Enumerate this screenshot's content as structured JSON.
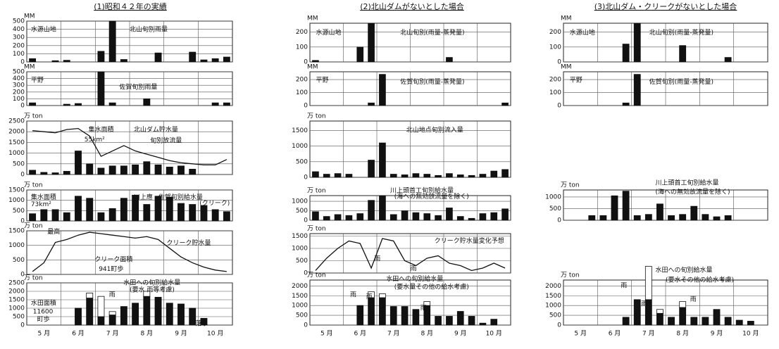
{
  "titles": [
    "(1)昭和４２年の実績",
    "(2)北山ダムがないとした場合",
    "(3)北山ダム・クリークがないとした場合"
  ],
  "chart_data": [
    {
      "type": "bar",
      "ylabel": "MM",
      "ylim": [
        0,
        500
      ],
      "yticks": [
        0,
        100,
        200,
        300,
        400,
        500
      ],
      "series": [
        {
          "type": "bar",
          "color": "#111111",
          "values": [
            40,
            0,
            15,
            20,
            0,
            0,
            130,
            500,
            30,
            0,
            0,
            110,
            0,
            0,
            120,
            25,
            40,
            60
          ]
        }
      ],
      "annotations": [
        "水源山地",
        "北山旬別雨量"
      ]
    },
    {
      "type": "bar",
      "ylabel": "MM",
      "ylim": [
        0,
        500
      ],
      "yticks": [
        0,
        100,
        200,
        300,
        400,
        500
      ],
      "series": [
        {
          "type": "bar",
          "color": "#111111",
          "values": [
            40,
            0,
            0,
            20,
            30,
            0,
            500,
            40,
            0,
            0,
            100,
            0,
            0,
            0,
            0,
            0,
            40,
            40
          ]
        }
      ],
      "annotations": [
        "平野",
        "佐賀旬別雨量"
      ]
    },
    {
      "type": "combo",
      "ylabel": "万 ton",
      "ylim": [
        0,
        2500
      ],
      "yticks": [
        0,
        500,
        1000,
        1500,
        2000,
        2500
      ],
      "series": [
        {
          "type": "bar",
          "color": "#111111",
          "values": [
            200,
            100,
            80,
            150,
            1100,
            500,
            300,
            400,
            400,
            450,
            600,
            450,
            350,
            400,
            250,
            0,
            0,
            0
          ]
        },
        {
          "type": "line",
          "color": "#111111",
          "values": [
            2050,
            2000,
            1950,
            2100,
            2150,
            1800,
            850,
            1100,
            1350,
            1100,
            950,
            800,
            650,
            550,
            500,
            450,
            450,
            700
          ]
        }
      ],
      "annotations": [
        "集水面積",
        "55km²",
        "北山ダム貯水量",
        "旬別放流量"
      ]
    },
    {
      "type": "bar",
      "ylabel": "万 ton",
      "ylim": [
        0,
        1500
      ],
      "yticks": [
        0,
        500,
        1000,
        1500
      ],
      "series": [
        {
          "type": "bar",
          "color": "#111111",
          "values": [
            350,
            550,
            550,
            400,
            1200,
            1100,
            400,
            600,
            1100,
            1250,
            800,
            1200,
            1150,
            850,
            800,
            750,
            550,
            450
          ]
        }
      ],
      "annotations": [
        "集水面積",
        "73km²",
        "川上應",
        "佐賀旬別給水量",
        "(クリーク)"
      ]
    },
    {
      "type": "line",
      "ylabel": "万 ton",
      "ylim": [
        0,
        1500
      ],
      "yticks": [
        0,
        500,
        1000,
        1500
      ],
      "series": [
        {
          "type": "line",
          "color": "#111111",
          "values": [
            100,
            400,
            1100,
            1200,
            1350,
            1450,
            1400,
            1350,
            1300,
            1250,
            1300,
            1200,
            900,
            600,
            400,
            250,
            150,
            100
          ]
        }
      ],
      "annotations": [
        "最高",
        "クリーク貯水量",
        "クリーク面積",
        "941町歩"
      ]
    },
    {
      "type": "bar",
      "ylabel": "万 ton",
      "ylim": [
        0,
        2500
      ],
      "yticks": [
        0,
        500,
        1000,
        1500,
        2000,
        2500
      ],
      "series": [
        {
          "type": "bar",
          "color": "#111111",
          "values": [
            0,
            0,
            0,
            0,
            1000,
            1600,
            500,
            600,
            1100,
            1300,
            1700,
            1650,
            1300,
            1250,
            1000,
            400,
            0,
            0
          ]
        },
        {
          "type": "bar",
          "color": "#ffffff",
          "values": [
            0,
            0,
            0,
            0,
            0,
            300,
            1200,
            200,
            0,
            0,
            300,
            0,
            0,
            0,
            0,
            0,
            0,
            0
          ]
        }
      ],
      "annotations": [
        "水田への旬別給水量",
        "(要水 雨等考慮)",
        "水田面積",
        "11600",
        "町歩",
        "雨",
        "落水"
      ],
      "months": [
        "5 月",
        "6 月",
        "7 月",
        "8 月",
        "9 月",
        "10 月"
      ]
    },
    {
      "type": "bar",
      "ylabel": "MM",
      "ylim": [
        0,
        260
      ],
      "yticks": [
        0,
        100,
        200
      ],
      "series": [
        {
          "type": "bar",
          "color": "#111111",
          "values": [
            10,
            0,
            0,
            0,
            100,
            260,
            0,
            0,
            0,
            0,
            0,
            0,
            30,
            0,
            0,
            0,
            0,
            0
          ]
        }
      ],
      "annotations": [
        "水源山地",
        "北山旬別(雨量-蒸発量)"
      ]
    },
    {
      "type": "bar",
      "ylabel": "MM",
      "ylim": [
        0,
        260
      ],
      "yticks": [
        0,
        100,
        200
      ],
      "series": [
        {
          "type": "bar",
          "color": "#111111",
          "values": [
            0,
            0,
            0,
            0,
            0,
            20,
            240,
            0,
            0,
            0,
            0,
            0,
            0,
            0,
            0,
            0,
            0,
            20
          ]
        }
      ],
      "annotations": [
        "平野",
        "佐賀旬別(雨量-蒸発量)"
      ]
    },
    {
      "type": "bar",
      "ylabel": "万 ton",
      "ylim": [
        0,
        1800
      ],
      "yticks": [
        0,
        500,
        1000,
        1500
      ],
      "series": [
        {
          "type": "bar",
          "color": "#111111",
          "values": [
            180,
            100,
            120,
            100,
            0,
            550,
            1100,
            100,
            80,
            120,
            100,
            60,
            120,
            80,
            60,
            100,
            200,
            250
          ]
        }
      ],
      "annotations": [
        "北山地点旬別流入量"
      ]
    },
    {
      "type": "bar",
      "ylabel": "万 ton",
      "ylim": [
        0,
        1300
      ],
      "yticks": [
        0,
        500,
        1000
      ],
      "series": [
        {
          "type": "bar",
          "color": "#111111",
          "values": [
            450,
            200,
            300,
            250,
            350,
            1050,
            1300,
            300,
            500,
            400,
            350,
            250,
            650,
            200,
            100,
            350,
            400,
            600
          ]
        }
      ],
      "annotations": [
        "川上頭首工旬別給水量",
        "(海への無効放流量を除く)"
      ]
    },
    {
      "type": "line",
      "ylabel": "万 ton",
      "ylim": [
        0,
        1600
      ],
      "yticks": [
        0,
        500,
        1000,
        1500
      ],
      "series": [
        {
          "type": "line",
          "color": "#111111",
          "values": [
            100,
            600,
            1000,
            1300,
            1200,
            200,
            1400,
            1300,
            500,
            300,
            600,
            700,
            400,
            300,
            100,
            200,
            400,
            200
          ]
        }
      ],
      "annotations": [
        "クリーク貯水量変化予想",
        "雨",
        "雨"
      ]
    },
    {
      "type": "bar",
      "ylabel": "万 ton",
      "ylim": [
        0,
        2300
      ],
      "yticks": [
        0,
        500,
        1000,
        1500,
        2000
      ],
      "series": [
        {
          "type": "bar",
          "color": "#111111",
          "values": [
            0,
            0,
            0,
            0,
            1000,
            1400,
            1400,
            950,
            950,
            800,
            1000,
            450,
            450,
            700,
            450,
            100,
            300,
            0
          ]
        },
        {
          "type": "bar",
          "color": "#ffffff",
          "values": [
            0,
            0,
            0,
            0,
            0,
            300,
            200,
            0,
            0,
            0,
            200,
            0,
            0,
            0,
            0,
            0,
            0,
            0
          ]
        }
      ],
      "annotations": [
        "水田への旬別給水量",
        "(要水量その他の給水考慮)",
        "雨",
        "雨",
        "雨"
      ],
      "months": [
        "5 月",
        "6 月",
        "7 月",
        "8 月",
        "9 月",
        "10 月"
      ]
    },
    {
      "type": "bar",
      "ylabel": "MM",
      "ylim": [
        0,
        260
      ],
      "yticks": [
        0,
        100,
        200
      ],
      "series": [
        {
          "type": "bar",
          "color": "#111111",
          "values": [
            0,
            0,
            0,
            0,
            0,
            120,
            260,
            0,
            0,
            0,
            110,
            0,
            0,
            0,
            30,
            0,
            0,
            0
          ]
        }
      ],
      "annotations": [
        "水源山地",
        "北山旬別(雨量-蒸発量)"
      ]
    },
    {
      "type": "bar",
      "ylabel": "MM",
      "ylim": [
        0,
        260
      ],
      "yticks": [
        0,
        100,
        200
      ],
      "series": [
        {
          "type": "bar",
          "color": "#111111",
          "values": [
            0,
            0,
            0,
            0,
            0,
            20,
            240,
            0,
            0,
            0,
            0,
            0,
            0,
            0,
            0,
            0,
            0,
            0
          ]
        }
      ],
      "annotations": [
        "平野",
        "佐賀旬別(雨量-蒸発量)"
      ]
    },
    {
      "type": "bar",
      "ylabel": "万 ton",
      "ylim": [
        0,
        1300
      ],
      "yticks": [
        0,
        500,
        1000
      ],
      "series": [
        {
          "type": "bar",
          "color": "#111111",
          "values": [
            0,
            0,
            200,
            200,
            1050,
            1250,
            200,
            250,
            700,
            200,
            250,
            600,
            250,
            150,
            200,
            0,
            0,
            0
          ]
        }
      ],
      "annotations": [
        "川上頭首工旬別給水量",
        "(海への無効放流量を除く)"
      ]
    },
    {
      "type": "bar",
      "ylabel": "万 ton",
      "ylim": [
        0,
        2300
      ],
      "yticks": [
        0,
        500,
        1000,
        1500,
        2000
      ],
      "series": [
        {
          "type": "bar",
          "color": "#111111",
          "values": [
            0,
            0,
            0,
            0,
            0,
            400,
            1300,
            1300,
            600,
            400,
            900,
            400,
            400,
            800,
            400,
            250,
            200,
            0
          ]
        },
        {
          "type": "bar",
          "color": "#ffffff",
          "values": [
            0,
            0,
            0,
            0,
            0,
            0,
            0,
            1700,
            200,
            0,
            300,
            0,
            0,
            0,
            0,
            0,
            0,
            0
          ]
        }
      ],
      "annotations": [
        "水田への旬別給水量",
        "(要水その他の給水考慮)",
        "雨",
        "雨",
        "雨"
      ],
      "months": [
        "5 月",
        "6 月",
        "7 月",
        "8 月",
        "9 月",
        "10 月"
      ]
    }
  ]
}
